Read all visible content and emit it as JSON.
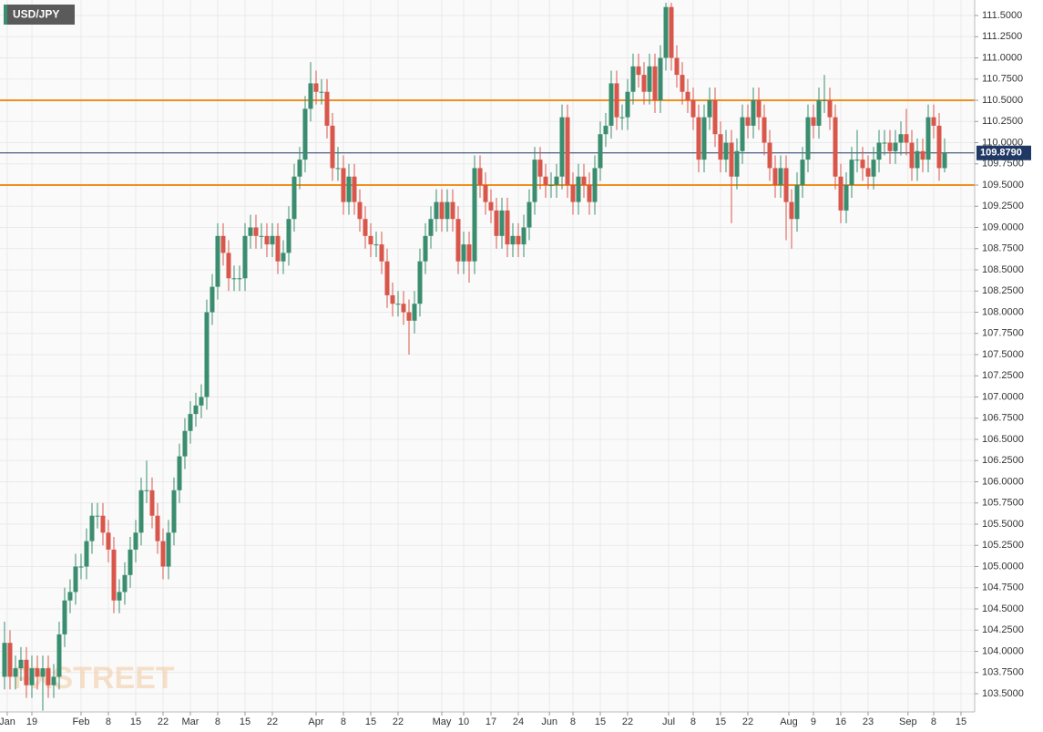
{
  "chart_data": {
    "type": "candlestick",
    "title": "USD/JPY",
    "watermark": "FXSTREET",
    "up_color": "#3a8d6e",
    "down_color": "#d9564b",
    "grid": true,
    "xlim": [
      -0.83,
      177.5
    ],
    "ylim": [
      103.285,
      111.683
    ],
    "xticks": [
      {
        "value": 0.5,
        "label": "Jan"
      },
      {
        "value": 5,
        "label": "19"
      },
      {
        "value": 14,
        "label": "Feb"
      },
      {
        "value": 19,
        "label": "8"
      },
      {
        "value": 24,
        "label": "15"
      },
      {
        "value": 29,
        "label": "22"
      },
      {
        "value": 34,
        "label": "Mar"
      },
      {
        "value": 39,
        "label": "8"
      },
      {
        "value": 44,
        "label": "15"
      },
      {
        "value": 49,
        "label": "22"
      },
      {
        "value": 57,
        "label": "Apr"
      },
      {
        "value": 62,
        "label": "8"
      },
      {
        "value": 67,
        "label": "15"
      },
      {
        "value": 72,
        "label": "22"
      },
      {
        "value": 80,
        "label": "May"
      },
      {
        "value": 84,
        "label": "10"
      },
      {
        "value": 89,
        "label": "17"
      },
      {
        "value": 94,
        "label": "24"
      },
      {
        "value": 99.7,
        "label": "Jun"
      },
      {
        "value": 104,
        "label": "8"
      },
      {
        "value": 109,
        "label": "15"
      },
      {
        "value": 114,
        "label": "22"
      },
      {
        "value": 121.5,
        "label": "Jul"
      },
      {
        "value": 126,
        "label": "8"
      },
      {
        "value": 131,
        "label": "15"
      },
      {
        "value": 136,
        "label": "22"
      },
      {
        "value": 143.5,
        "label": "Aug"
      },
      {
        "value": 148,
        "label": "9"
      },
      {
        "value": 153,
        "label": "16"
      },
      {
        "value": 158,
        "label": "23"
      },
      {
        "value": 165.3,
        "label": "Sep"
      },
      {
        "value": 170,
        "label": "8"
      },
      {
        "value": 175,
        "label": "15"
      }
    ],
    "yticks": [
      {
        "value": 103.5,
        "label": "103.5000"
      },
      {
        "value": 103.75,
        "label": "103.7500"
      },
      {
        "value": 104,
        "label": "104.0000"
      },
      {
        "value": 104.25,
        "label": "104.2500"
      },
      {
        "value": 104.5,
        "label": "104.5000"
      },
      {
        "value": 104.75,
        "label": "104.7500"
      },
      {
        "value": 105,
        "label": "105.0000"
      },
      {
        "value": 105.25,
        "label": "105.2500"
      },
      {
        "value": 105.5,
        "label": "105.5000"
      },
      {
        "value": 105.75,
        "label": "105.7500"
      },
      {
        "value": 106,
        "label": "106.0000"
      },
      {
        "value": 106.25,
        "label": "106.2500"
      },
      {
        "value": 106.5,
        "label": "106.5000"
      },
      {
        "value": 106.75,
        "label": "106.7500"
      },
      {
        "value": 107,
        "label": "107.0000"
      },
      {
        "value": 107.25,
        "label": "107.2500"
      },
      {
        "value": 107.5,
        "label": "107.5000"
      },
      {
        "value": 107.75,
        "label": "107.7500"
      },
      {
        "value": 108,
        "label": "108.0000"
      },
      {
        "value": 108.25,
        "label": "108.2500"
      },
      {
        "value": 108.5,
        "label": "108.5000"
      },
      {
        "value": 108.75,
        "label": "108.7500"
      },
      {
        "value": 109,
        "label": "109.0000"
      },
      {
        "value": 109.25,
        "label": "109.2500"
      },
      {
        "value": 109.5,
        "label": "109.5000"
      },
      {
        "value": 109.75,
        "label": "109.7500"
      },
      {
        "value": 110,
        "label": "110.0000"
      },
      {
        "value": 110.25,
        "label": "110.2500"
      },
      {
        "value": 110.5,
        "label": "110.5000"
      },
      {
        "value": 110.75,
        "label": "110.7500"
      },
      {
        "value": 111,
        "label": "111.0000"
      },
      {
        "value": 111.25,
        "label": "111.2500"
      },
      {
        "value": 111.5,
        "label": "111.5000"
      }
    ],
    "levels": [
      {
        "value": 110.5,
        "color": "#f0901e"
      },
      {
        "value": 109.5,
        "color": "#f0901e"
      }
    ],
    "last_price": {
      "value": 109.879,
      "label": "109.8790",
      "color": "#1f3864"
    },
    "open": [
      103.7,
      104.1,
      103.7,
      103.8,
      103.9,
      103.6,
      103.8,
      103.7,
      103.8,
      103.6,
      103.7,
      104.2,
      104.6,
      104.7,
      105.0,
      105.0,
      105.3,
      105.6,
      105.6,
      105.4,
      105.2,
      104.6,
      104.7,
      104.9,
      105.2,
      105.4,
      105.9,
      105.9,
      105.6,
      105.3,
      105.0,
      105.4,
      105.9,
      106.3,
      106.6,
      106.8,
      106.9,
      107.0,
      108.0,
      108.3,
      108.9,
      108.7,
      108.4,
      108.4,
      108.4,
      108.9,
      109.0,
      108.9,
      108.9,
      108.8,
      108.9,
      108.6,
      108.7,
      109.1,
      109.6,
      109.8,
      110.4,
      110.7,
      110.6,
      110.6,
      110.2,
      109.7,
      109.7,
      109.3,
      109.6,
      109.3,
      109.1,
      108.9,
      108.8,
      108.8,
      108.6,
      108.2,
      108.1,
      108.1,
      108.0,
      107.9,
      108.1,
      108.6,
      108.9,
      109.1,
      109.3,
      109.1,
      109.3,
      109.1,
      108.6,
      108.8,
      108.6,
      109.7,
      109.5,
      109.3,
      109.2,
      108.9,
      109.2,
      108.8,
      108.9,
      108.8,
      109.0,
      109.3,
      109.8,
      109.6,
      109.5,
      109.5,
      109.6,
      110.3,
      109.5,
      109.3,
      109.6,
      109.5,
      109.3,
      109.7,
      110.1,
      110.2,
      110.7,
      110.3,
      110.3,
      110.6,
      110.9,
      110.8,
      110.6,
      110.9,
      110.5,
      111.0,
      111.6,
      111.0,
      110.8,
      110.6,
      110.5,
      110.3,
      109.8,
      110.3,
      110.5,
      110.1,
      109.8,
      110.0,
      109.6,
      109.9,
      110.3,
      110.2,
      110.5,
      110.3,
      110.0,
      109.7,
      109.5,
      109.7,
      109.3,
      109.1,
      109.5,
      109.8,
      110.3,
      110.2,
      110.5,
      110.5,
      110.3,
      109.6,
      109.2,
      109.5,
      109.8,
      109.8,
      109.7,
      109.6,
      109.8,
      110.0,
      110.0,
      109.9,
      110.0,
      110.1,
      110.0,
      109.7,
      109.9,
      109.8,
      110.3,
      110.2,
      109.7
    ],
    "high": [
      104.35,
      104.25,
      103.95,
      104.05,
      104.05,
      103.95,
      103.95,
      103.95,
      103.95,
      103.85,
      104.35,
      104.75,
      104.85,
      105.15,
      105.15,
      105.45,
      105.75,
      105.75,
      105.75,
      105.55,
      105.35,
      104.85,
      105.05,
      105.35,
      105.55,
      106.05,
      106.25,
      106.05,
      105.75,
      105.45,
      105.55,
      106.05,
      106.45,
      106.75,
      106.95,
      107.05,
      107.15,
      108.15,
      108.45,
      109.05,
      109.05,
      108.85,
      108.55,
      108.55,
      109.05,
      109.15,
      109.15,
      109.05,
      109.05,
      109.05,
      109.05,
      108.85,
      109.25,
      109.75,
      109.95,
      110.55,
      110.95,
      110.85,
      110.75,
      110.75,
      110.35,
      109.95,
      109.85,
      109.75,
      109.75,
      109.45,
      109.25,
      109.05,
      108.95,
      108.95,
      108.75,
      108.35,
      108.25,
      108.25,
      108.15,
      108.25,
      108.75,
      109.05,
      109.25,
      109.45,
      109.45,
      109.45,
      109.45,
      109.25,
      108.95,
      108.95,
      109.85,
      109.85,
      109.65,
      109.45,
      109.35,
      109.35,
      109.35,
      109.05,
      109.05,
      109.15,
      109.45,
      109.95,
      109.95,
      109.75,
      109.65,
      109.75,
      110.45,
      110.45,
      109.65,
      109.75,
      109.75,
      109.65,
      109.85,
      110.25,
      110.35,
      110.85,
      110.85,
      110.45,
      110.75,
      111.05,
      111.05,
      110.95,
      111.05,
      111.05,
      111.15,
      111.65,
      111.65,
      111.15,
      110.95,
      110.75,
      110.65,
      110.45,
      110.45,
      110.65,
      110.65,
      110.25,
      110.15,
      110.15,
      110.05,
      110.45,
      110.45,
      110.65,
      110.65,
      110.45,
      110.15,
      109.85,
      109.85,
      109.85,
      109.45,
      109.65,
      109.95,
      110.45,
      110.45,
      110.65,
      110.8,
      110.65,
      110.45,
      109.75,
      109.65,
      109.95,
      110.15,
      109.95,
      109.85,
      109.95,
      110.15,
      110.15,
      110.15,
      110.15,
      110.25,
      110.4,
      110.15,
      110.05,
      110.05,
      110.45,
      110.45,
      110.35,
      110.05
    ],
    "low": [
      103.55,
      103.55,
      103.55,
      103.65,
      103.45,
      103.45,
      103.55,
      103.3,
      103.45,
      103.45,
      103.55,
      104.05,
      104.45,
      104.55,
      104.85,
      104.85,
      105.15,
      105.45,
      105.25,
      105.05,
      104.45,
      104.45,
      104.55,
      104.75,
      105.05,
      105.25,
      105.75,
      105.45,
      105.15,
      104.85,
      104.85,
      105.25,
      105.75,
      106.15,
      106.45,
      106.65,
      106.75,
      106.85,
      107.85,
      108.15,
      108.55,
      108.25,
      108.25,
      108.25,
      108.25,
      108.75,
      108.75,
      108.75,
      108.65,
      108.65,
      108.45,
      108.45,
      108.55,
      108.95,
      109.45,
      109.65,
      110.25,
      110.45,
      110.45,
      110.05,
      109.55,
      109.55,
      109.15,
      109.15,
      109.15,
      108.95,
      108.75,
      108.65,
      108.65,
      108.45,
      108.05,
      107.95,
      107.95,
      107.85,
      107.5,
      107.75,
      107.95,
      108.45,
      108.75,
      108.95,
      108.95,
      108.95,
      108.95,
      108.45,
      108.45,
      108.35,
      108.45,
      109.35,
      109.15,
      109.05,
      108.75,
      108.75,
      108.65,
      108.65,
      108.65,
      108.65,
      108.85,
      109.15,
      109.45,
      109.35,
      109.35,
      109.35,
      109.45,
      109.35,
      109.15,
      109.15,
      109.35,
      109.15,
      109.15,
      109.55,
      109.95,
      110.05,
      110.15,
      110.15,
      110.15,
      110.45,
      110.65,
      110.45,
      110.45,
      110.35,
      110.35,
      110.85,
      110.85,
      110.65,
      110.45,
      110.35,
      110.15,
      109.65,
      109.65,
      110.15,
      109.95,
      109.65,
      109.65,
      109.05,
      109.45,
      109.75,
      110.05,
      110.05,
      110.15,
      109.85,
      109.55,
      109.35,
      109.35,
      108.85,
      108.75,
      108.95,
      109.35,
      109.65,
      110.05,
      110.05,
      110.35,
      110.15,
      109.45,
      109.05,
      109.05,
      109.35,
      109.65,
      109.55,
      109.45,
      109.45,
      109.65,
      109.85,
      109.75,
      109.75,
      109.85,
      109.85,
      109.55,
      109.55,
      109.65,
      109.65,
      110.05,
      109.55,
      109.65
    ],
    "close": [
      104.1,
      103.7,
      103.8,
      103.9,
      103.6,
      103.8,
      103.7,
      103.8,
      103.6,
      103.7,
      104.2,
      104.6,
      104.7,
      105.0,
      105.0,
      105.3,
      105.6,
      105.6,
      105.4,
      105.2,
      104.6,
      104.7,
      104.9,
      105.2,
      105.4,
      105.9,
      105.9,
      105.6,
      105.3,
      105.0,
      105.4,
      105.9,
      106.3,
      106.6,
      106.8,
      106.9,
      107.0,
      108.0,
      108.3,
      108.9,
      108.7,
      108.4,
      108.4,
      108.4,
      108.9,
      109.0,
      108.9,
      108.9,
      108.8,
      108.9,
      108.6,
      108.7,
      109.1,
      109.6,
      109.8,
      110.4,
      110.7,
      110.6,
      110.6,
      110.2,
      109.7,
      109.7,
      109.3,
      109.6,
      109.3,
      109.1,
      108.9,
      108.8,
      108.8,
      108.6,
      108.2,
      108.1,
      108.1,
      108.0,
      107.9,
      108.1,
      108.6,
      108.9,
      109.1,
      109.3,
      109.1,
      109.3,
      109.1,
      108.6,
      108.8,
      108.6,
      109.7,
      109.5,
      109.3,
      109.2,
      108.9,
      109.2,
      108.8,
      108.9,
      108.8,
      109.0,
      109.3,
      109.8,
      109.6,
      109.5,
      109.5,
      109.6,
      110.3,
      109.5,
      109.3,
      109.6,
      109.5,
      109.3,
      109.7,
      110.1,
      110.2,
      110.7,
      110.3,
      110.3,
      110.6,
      110.9,
      110.8,
      110.6,
      110.9,
      110.5,
      111.0,
      111.6,
      111.0,
      110.8,
      110.6,
      110.5,
      110.3,
      109.8,
      110.3,
      110.5,
      110.1,
      109.8,
      110.0,
      109.6,
      109.9,
      110.3,
      110.2,
      110.5,
      110.3,
      110.0,
      109.7,
      109.5,
      109.7,
      109.3,
      109.1,
      109.5,
      109.8,
      110.3,
      110.2,
      110.5,
      110.5,
      110.3,
      109.6,
      109.2,
      109.5,
      109.8,
      109.8,
      109.7,
      109.6,
      109.8,
      110.0,
      110.0,
      109.9,
      110.0,
      110.1,
      110.0,
      109.7,
      109.9,
      109.8,
      110.3,
      110.2,
      109.7,
      109.879
    ]
  }
}
